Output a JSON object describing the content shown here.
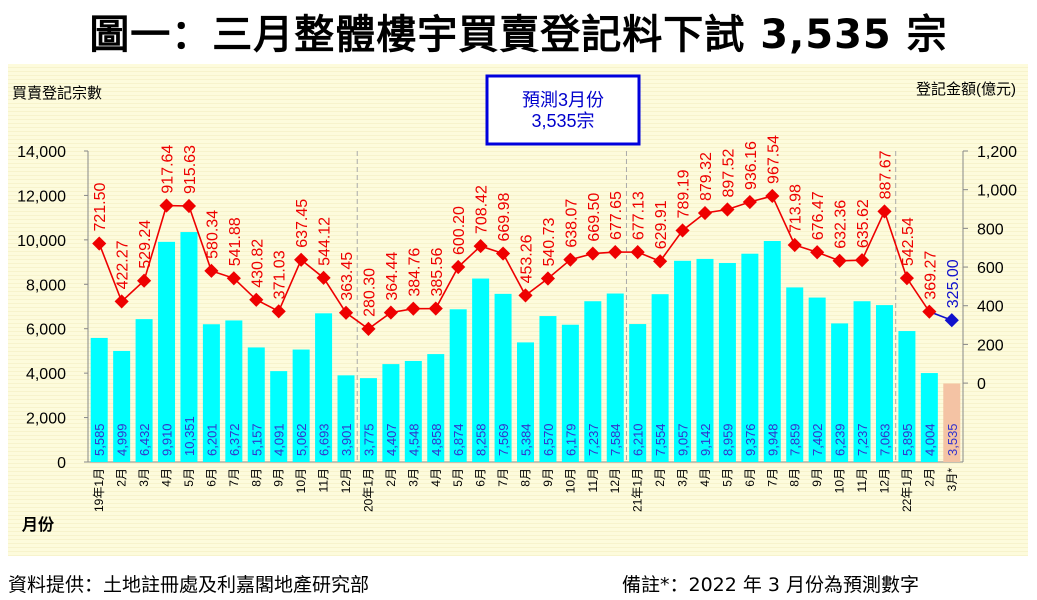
{
  "title": "圖一：三月整體樓宇買賣登記料下試 3,535 宗",
  "footer": {
    "source": "資料提供：土地註冊處及利嘉閣地產研究部",
    "note": "備註*：2022 年 3 月份為預測數字"
  },
  "chart_data": {
    "type": "bar+line",
    "ylabel_left": "買賣登記宗數",
    "ylabel_right": "登記金額(億元)",
    "xlabel": "月份",
    "annotation": {
      "line1": "預測3月份",
      "line2": "3,535宗"
    },
    "ylim_left": [
      0,
      14000
    ],
    "yticks_left": [
      "0",
      "2,000",
      "4,000",
      "6,000",
      "8,000",
      "10,000",
      "12,000",
      "14,000"
    ],
    "ylim_right": [
      -408,
      1200
    ],
    "yticks_right": [
      "0",
      "200",
      "400",
      "600",
      "800",
      "1,000",
      "1,200"
    ],
    "categories": [
      "19年1月",
      "2月",
      "3月",
      "4月",
      "5月",
      "6月",
      "7月",
      "8月",
      "9月",
      "10月",
      "11月",
      "12月",
      "20年1月",
      "2月",
      "3月",
      "4月",
      "5月",
      "6月",
      "7月",
      "8月",
      "9月",
      "10月",
      "11月",
      "12月",
      "21年1月",
      "2月",
      "3月",
      "4月",
      "5月",
      "6月",
      "7月",
      "8月",
      "9月",
      "10月",
      "11月",
      "12月",
      "22年1月",
      "2月",
      "3月*"
    ],
    "series": [
      {
        "name": "買賣登記宗數",
        "type": "bar",
        "axis": "left",
        "color": "#00ffff",
        "forecast_color": "#f4c3a4",
        "values": [
          5585,
          4999,
          6432,
          9910,
          10351,
          6201,
          6372,
          5157,
          4091,
          5062,
          6693,
          3901,
          3775,
          4407,
          4548,
          4858,
          6874,
          8258,
          7569,
          5384,
          6570,
          6179,
          7237,
          7584,
          6210,
          7554,
          9057,
          9142,
          8959,
          9376,
          9948,
          7859,
          7402,
          6239,
          7237,
          7063,
          5895,
          4004,
          3535
        ],
        "labels": [
          "5,585",
          "4,999",
          "6,432",
          "9,910",
          "10,351",
          "6,201",
          "6,372",
          "5,157",
          "4,091",
          "5,062",
          "6,693",
          "3,901",
          "3,775",
          "4,407",
          "4,548",
          "4,858",
          "6,874",
          "8,258",
          "7,569",
          "5,384",
          "6,570",
          "6,179",
          "7,237",
          "7,584",
          "6,210",
          "7,554",
          "9,057",
          "9,142",
          "8,959",
          "9,376",
          "9,948",
          "7,859",
          "7,402",
          "6,239",
          "7,237",
          "7,063",
          "5,895",
          "4,004",
          "3,535"
        ]
      },
      {
        "name": "登記金額(億元)",
        "type": "line",
        "axis": "right",
        "color": "#ee0000",
        "forecast_color": "#1111cc",
        "values": [
          721.5,
          422.27,
          529.24,
          917.64,
          915.63,
          580.34,
          541.88,
          430.82,
          371.03,
          637.45,
          544.12,
          363.45,
          280.3,
          364.44,
          384.76,
          385.56,
          600.2,
          708.42,
          669.98,
          453.26,
          540.73,
          638.07,
          669.5,
          677.65,
          677.13,
          629.91,
          789.19,
          879.32,
          897.52,
          936.16,
          967.54,
          713.98,
          676.47,
          632.36,
          635.62,
          887.67,
          542.54,
          369.27,
          325.0
        ],
        "labels": [
          "721.50",
          "422.27",
          "529.24",
          "917.64",
          "915.63",
          "580.34",
          "541.88",
          "430.82",
          "371.03",
          "637.45",
          "544.12",
          "363.45",
          "280.30",
          "364.44",
          "384.76",
          "385.56",
          "600.20",
          "708.42",
          "669.98",
          "453.26",
          "540.73",
          "638.07",
          "669.50",
          "677.65",
          "677.13",
          "629.91",
          "789.19",
          "879.32",
          "897.52",
          "936.16",
          "967.54",
          "713.98",
          "676.47",
          "632.36",
          "635.62",
          "887.67",
          "542.54",
          "369.27",
          "325.00"
        ]
      }
    ],
    "forecast_index": 38
  }
}
